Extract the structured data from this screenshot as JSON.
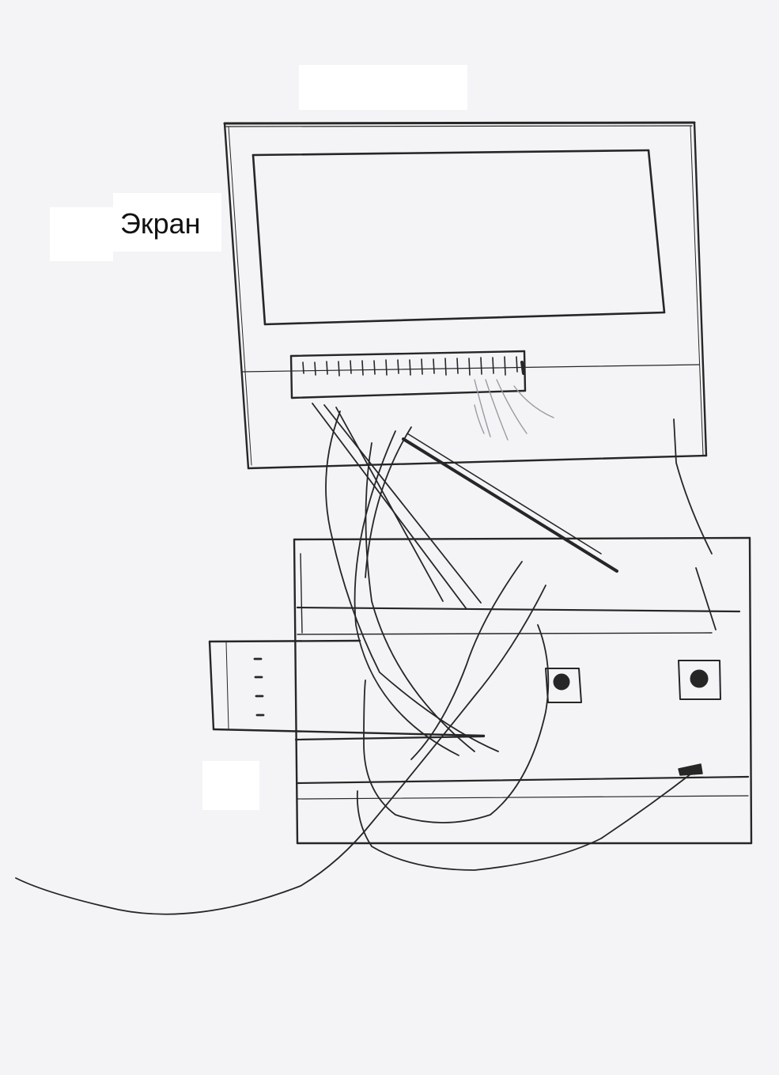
{
  "labels": {
    "screen": "Экран"
  },
  "colors": {
    "paper": "#f4f4f7",
    "ink": "#222222",
    "mask": "#ffffff"
  }
}
